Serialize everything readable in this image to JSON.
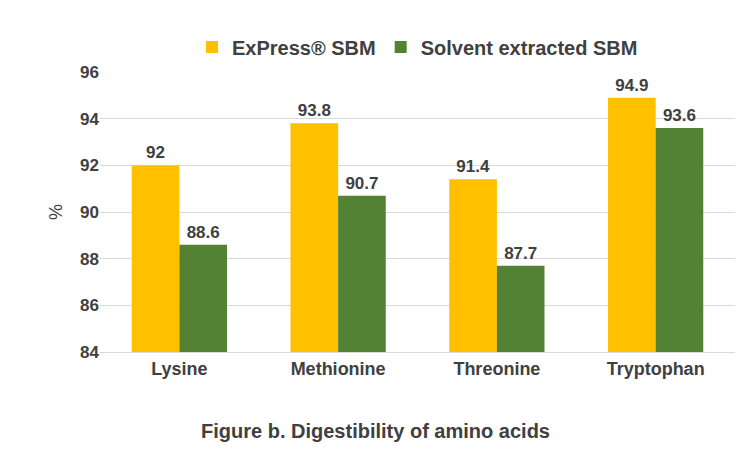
{
  "chart_data": {
    "type": "bar",
    "title": "Figure b. Digestibility of amino acids",
    "y_label": "%",
    "categories": [
      "Lysine",
      "Methionine",
      "Threonine",
      "Tryptophan"
    ],
    "series": [
      {
        "name": "ExPress® SBM",
        "color": "#ffc000",
        "values": [
          92,
          93.8,
          91.4,
          94.9
        ]
      },
      {
        "name": "Solvent extracted SBM",
        "color": "#548235",
        "values": [
          88.6,
          90.7,
          87.7,
          93.6
        ]
      }
    ],
    "ylim": [
      84,
      96
    ],
    "yticks": [
      84,
      86,
      88,
      90,
      92,
      94,
      96
    ],
    "grid": true,
    "legend": "top",
    "data_labels": true
  }
}
